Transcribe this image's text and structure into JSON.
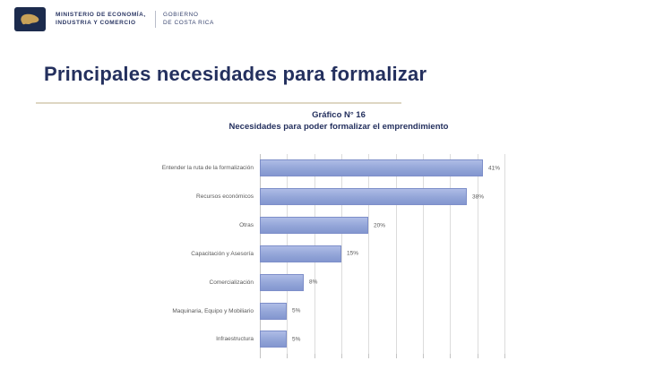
{
  "header": {
    "ministry_line1": "MINISTERIO DE ECONOMÍA,",
    "ministry_line2": "INDUSTRIA Y COMERCIO",
    "gov_line1": "GOBIERNO",
    "gov_line2": "DE COSTA RICA",
    "logo": {
      "icon": "costa-rica-map-icon",
      "bg_color": "#1c2b4d",
      "map_color": "#c8a158"
    }
  },
  "slide": {
    "title": "Principales necesidades para formalizar",
    "title_color": "#24305e",
    "rule_color": "#ded6c3"
  },
  "chart_data": {
    "type": "bar",
    "orientation": "horizontal",
    "title": "Gráfico N° 16",
    "subtitle": "Necesidades para poder formalizar el emprendimiento",
    "categories": [
      "Entender la ruta de la formalización",
      "Recursos económicos",
      "Otras",
      "Capacitación y Asesoría",
      "Comercialización",
      "Maquinaria, Equipo y Mobiliario",
      "Infraestructura"
    ],
    "values": [
      41,
      38,
      20,
      15,
      8,
      5,
      5
    ],
    "value_labels": [
      "41%",
      "38%",
      "20%",
      "15%",
      "8%",
      "5%",
      "5%"
    ],
    "xlim": [
      0,
      45
    ],
    "gridline_interval": 5,
    "grid": true,
    "legend": false,
    "bar_color": "#93a5d8",
    "bar_border_color": "#7d8ec9",
    "gridline_color": "#dcdcdc",
    "label_color": "#595959"
  }
}
